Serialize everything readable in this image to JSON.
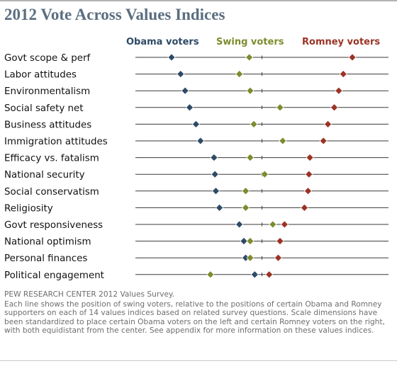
{
  "page_title": "2012 Vote Across Values Indices",
  "source": "PEW RESEARCH  CENTER 2012 Values Survey.",
  "note": "Each line shows the position of swing voters, relative to the positions of certain Obama and Romney supporters on each of 14 values indices based on related survey questions. Scale dimensions have been standardized to place certain Obama voters on the left and certain Romney voters on the right, with both equidistant from the center. See appendix for more information on these values indices.",
  "colors": {
    "obama": "#2e4a66",
    "swing": "#7c8c2e",
    "romney": "#9b3325",
    "title": "#5b6e80",
    "line": "#3a3a3a",
    "text": "#111111",
    "note": "#6e6e6e"
  },
  "chart_data": {
    "type": "scatter",
    "title": "2012 Vote Across Values Indices",
    "marker": "diamond",
    "xlabel": "",
    "ylabel": "",
    "legend": "top",
    "center_tick": true,
    "series": [
      {
        "name": "Obama voters",
        "color": "#2e4a66"
      },
      {
        "name": "Swing voters",
        "color": "#7c8c2e"
      },
      {
        "name": "Romney voters",
        "color": "#9b3325"
      }
    ],
    "categories": [
      "Govt scope & perf",
      "Labor attitudes",
      "Environmentalism",
      "Social safety net",
      "Business attitudes",
      "Immigration attitudes",
      "Efficacy vs. fatalism",
      "National security",
      "Social conservatism",
      "Religiosity",
      "Govt responsiveness",
      "National optimism",
      "Personal finances",
      "Political engagement"
    ],
    "xlim": [
      -1.4,
      1.4
    ],
    "values": {
      "Obama voters": [
        -1.0,
        -0.9,
        -0.85,
        -0.8,
        -0.73,
        -0.68,
        -0.53,
        -0.52,
        -0.51,
        -0.47,
        -0.25,
        -0.2,
        -0.18,
        -0.08
      ],
      "Swing voters": [
        -0.14,
        -0.25,
        -0.13,
        0.2,
        -0.09,
        0.23,
        -0.13,
        0.03,
        -0.18,
        -0.18,
        0.12,
        -0.13,
        -0.13,
        -0.57
      ],
      "Romney voters": [
        1.0,
        0.9,
        0.85,
        0.8,
        0.73,
        0.68,
        0.53,
        0.52,
        0.51,
        0.47,
        0.25,
        0.2,
        0.18,
        0.08
      ]
    }
  }
}
